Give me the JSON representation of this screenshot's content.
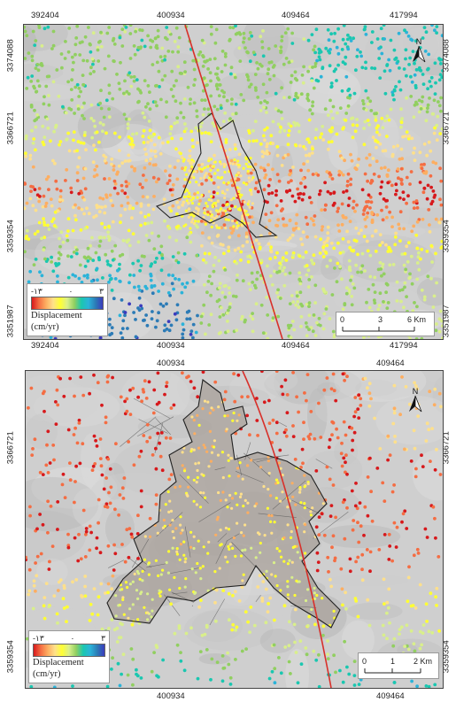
{
  "maps": [
    {
      "x_ticks_top": [
        "392404",
        "400934",
        "409464",
        "417994"
      ],
      "x_ticks_bottom": [
        "392404",
        "400934",
        "409464",
        "417994"
      ],
      "y_ticks_left": [
        "3374088",
        "3366721",
        "3359354",
        "3351987"
      ],
      "y_ticks_right": [
        "3374088",
        "3366721",
        "3359354",
        "3351987"
      ],
      "legend": {
        "min": "-۱۳",
        "mid": "۰",
        "max": "۳",
        "title": "Displacement",
        "unit": "(cm/yr)"
      },
      "scale": {
        "labels": [
          "0",
          "3",
          "6 Km"
        ]
      },
      "north": "N"
    },
    {
      "x_ticks_top": [
        "400934",
        "409464"
      ],
      "x_ticks_bottom": [
        "400934",
        "409464"
      ],
      "y_ticks_left": [
        "3366721",
        "3359354"
      ],
      "y_ticks_right": [
        "3366721",
        "3359354"
      ],
      "legend": {
        "min": "-۱۳",
        "mid": "۰",
        "max": "۳",
        "title": "Displacement",
        "unit": "(cm/yr)"
      },
      "scale": {
        "labels": [
          "0",
          "1",
          "2 Km"
        ]
      },
      "north": "N"
    }
  ],
  "colors": {
    "ramp": [
      "#d7191c",
      "#f46d43",
      "#fdae61",
      "#fee08b",
      "#ffff33",
      "#d9ef8b",
      "#91cf60",
      "#1ac7b0",
      "#2bb3d9",
      "#2c7bb6",
      "#3a3bbd"
    ],
    "fault_line": "#d8302a",
    "city_outline": "#222222",
    "background": "#cfcfcf"
  }
}
